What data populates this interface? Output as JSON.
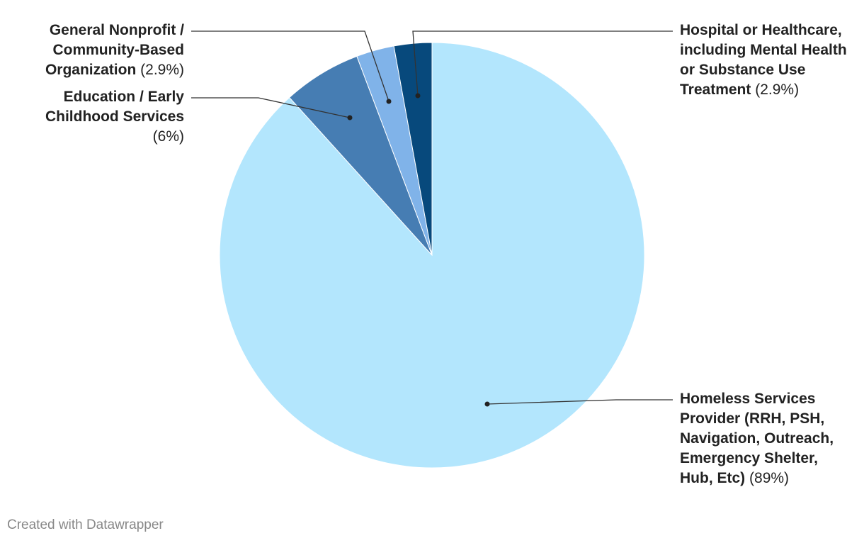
{
  "chart_data": {
    "type": "pie",
    "categories": [
      "Homeless Services Provider (RRH, PSH, Navigation, Outreach, Emergency Shelter, Hub, Etc)",
      "Education / Early Childhood Services",
      "General Nonprofit / Community-Based Organization",
      "Hospital or Healthcare, including Mental Health or Substance Use Treatment"
    ],
    "values": [
      89,
      6,
      2.9,
      2.9
    ],
    "value_labels": [
      "(89%)",
      "(6%)",
      "(2.9%)",
      "(2.9%)"
    ],
    "colors": [
      "#b3e6fd",
      "#467db3",
      "#80b3e9",
      "#07497c"
    ],
    "footer": "Created with Datawrapper"
  }
}
